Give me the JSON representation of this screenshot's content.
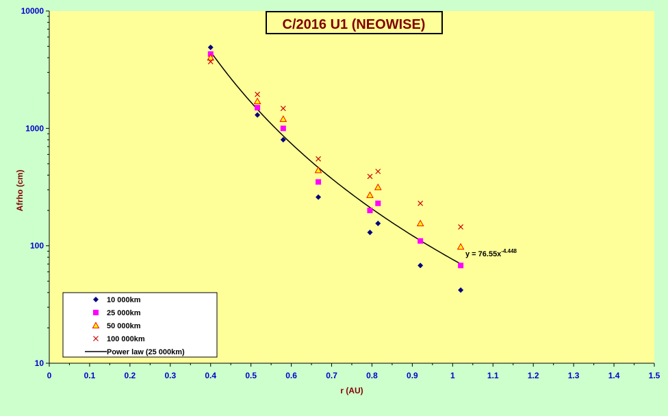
{
  "chart_data": {
    "type": "scatter",
    "title": "C/2016 U1 (NEOWISE)",
    "xlabel": "r (AU)",
    "ylabel": "Afrho (cm)",
    "xlim": [
      0,
      1.5
    ],
    "ylim": [
      10,
      10000
    ],
    "yscale": "log",
    "grid": false,
    "legend_position": "bottom-left",
    "x_ticks": [
      "0",
      "0.1",
      "0.2",
      "0.3",
      "0.4",
      "0.5",
      "0.6",
      "0.7",
      "0.8",
      "0.9",
      "1",
      "1.1",
      "1.2",
      "1.3",
      "1.4",
      "1.5"
    ],
    "y_ticks": [
      "10",
      "100",
      "1000",
      "10000"
    ],
    "series": [
      {
        "name": "10 000km",
        "marker": "diamond",
        "color": "#000080",
        "points": [
          [
            0.4,
            4900
          ],
          [
            0.516,
            1300
          ],
          [
            0.58,
            800
          ],
          [
            0.667,
            260
          ],
          [
            0.795,
            130
          ],
          [
            0.815,
            155
          ],
          [
            0.92,
            68
          ],
          [
            1.02,
            42
          ]
        ]
      },
      {
        "name": "25 000km",
        "marker": "square",
        "color": "#ff00ff",
        "points": [
          [
            0.4,
            4300
          ],
          [
            0.516,
            1500
          ],
          [
            0.58,
            1000
          ],
          [
            0.667,
            350
          ],
          [
            0.795,
            200
          ],
          [
            0.815,
            230
          ],
          [
            0.92,
            110
          ],
          [
            1.02,
            68
          ]
        ]
      },
      {
        "name": "50 000km",
        "marker": "triangle",
        "color": "#ff0000",
        "fill": "#ffff00",
        "points": [
          [
            0.4,
            4000
          ],
          [
            0.516,
            1700
          ],
          [
            0.58,
            1200
          ],
          [
            0.667,
            440
          ],
          [
            0.795,
            270
          ],
          [
            0.815,
            315
          ],
          [
            0.92,
            155
          ],
          [
            1.02,
            98
          ]
        ]
      },
      {
        "name": "100 000km",
        "marker": "x",
        "color": "#cc0000",
        "points": [
          [
            0.4,
            3700
          ],
          [
            0.516,
            1950
          ],
          [
            0.58,
            1480
          ],
          [
            0.667,
            550
          ],
          [
            0.795,
            390
          ],
          [
            0.815,
            430
          ],
          [
            0.92,
            230
          ],
          [
            1.02,
            145
          ]
        ]
      },
      {
        "name": "Power law (25 000km)",
        "marker": "line",
        "color": "#000000",
        "fit": {
          "a": 76.55,
          "b": -4.448,
          "x_start": 0.4,
          "x_end": 1.02
        }
      }
    ],
    "annotation": {
      "base": "y = 76.55x",
      "exponent": "-4.448"
    },
    "colors": {
      "outer_background": "#ccffcc",
      "plot_background": "#ffff99",
      "title_background": "#ffff99",
      "axis_text": "#0000cc",
      "axis_title": "#800000"
    }
  }
}
